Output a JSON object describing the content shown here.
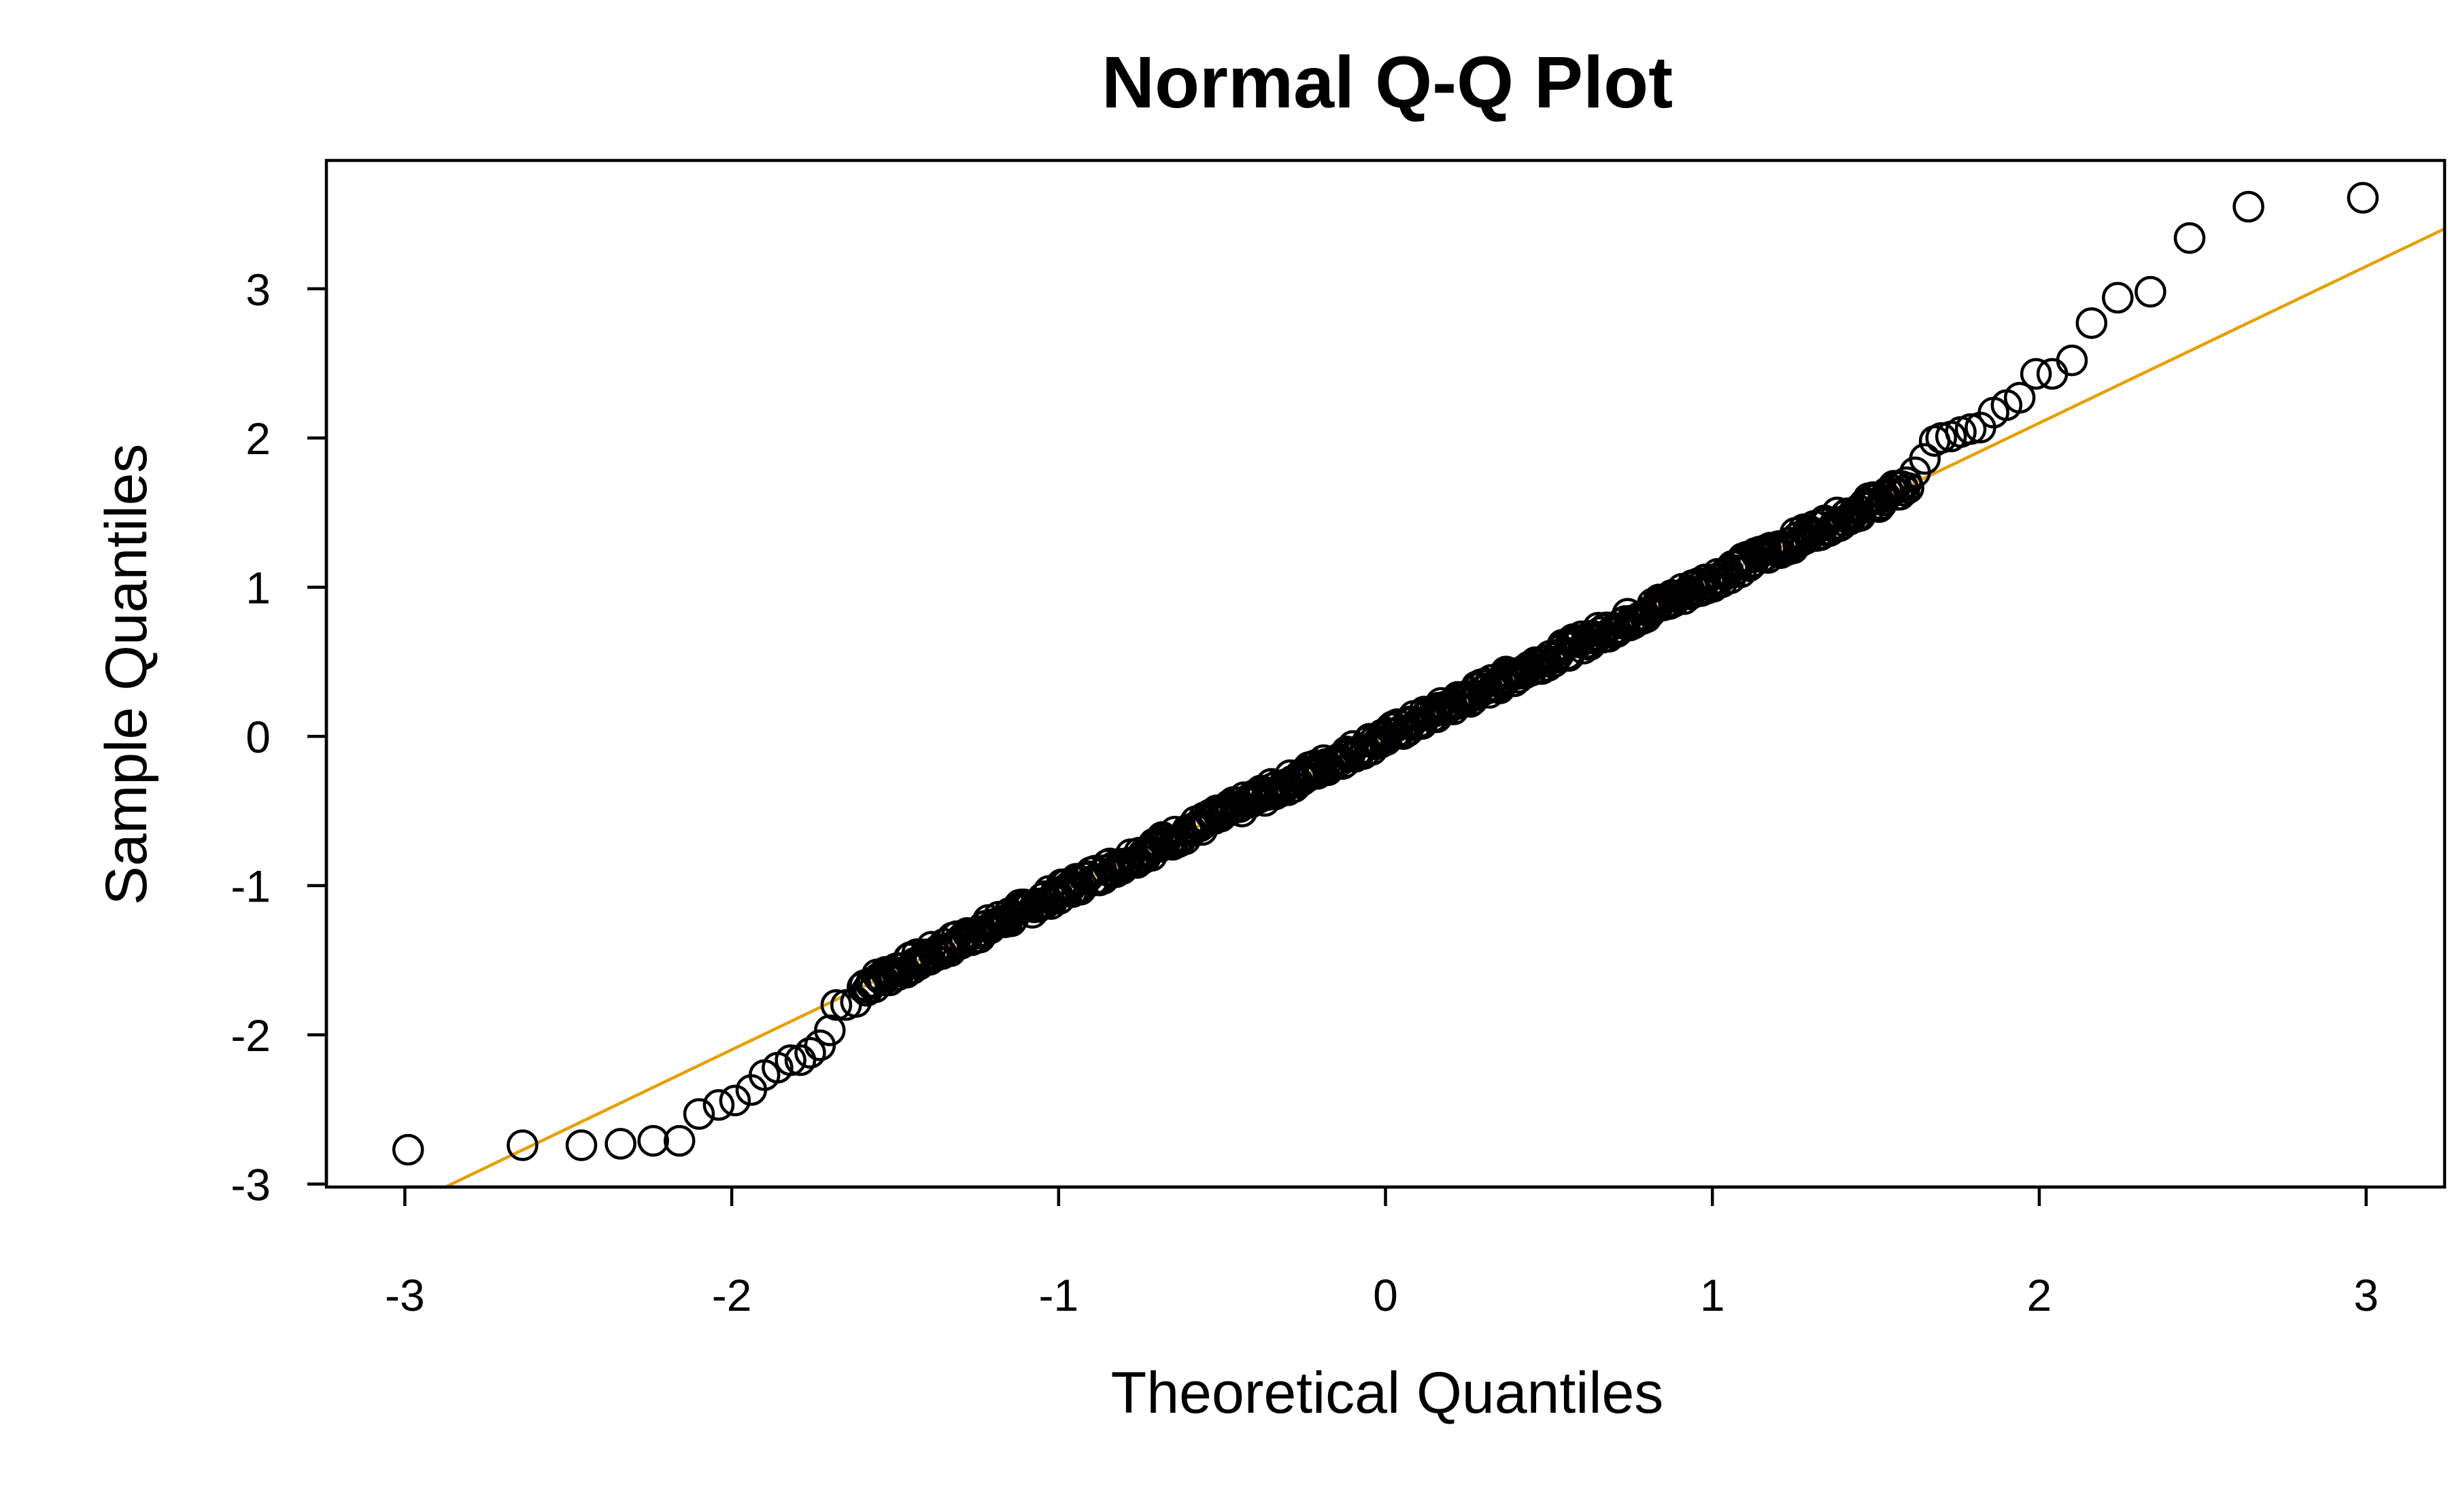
{
  "chart_data": {
    "type": "scatter",
    "title": "Normal Q-Q Plot",
    "xlabel": "Theoretical Quantiles",
    "ylabel": "Sample Quantiles",
    "xlim": [
      -3.24,
      3.24
    ],
    "ylim": [
      -3.02,
      3.86
    ],
    "x_ticks": [
      "-3",
      "-2",
      "-1",
      "0",
      "1",
      "2",
      "3"
    ],
    "y_ticks": [
      "-3",
      "-2",
      "-1",
      "0",
      "1",
      "2",
      "3"
    ],
    "x_tick_values": [
      -3,
      -2,
      -1,
      0,
      1,
      2,
      3
    ],
    "y_tick_values": [
      -3,
      -2,
      -1,
      0,
      1,
      2,
      3
    ],
    "grid": false,
    "line_color": "#E69F00",
    "point_color": "#000000",
    "reference_line": {
      "slope": 1.05,
      "intercept": 0.0
    },
    "points_body": {
      "x_from": -1.6,
      "x_to": 1.6,
      "count": 500,
      "slope": 1.05,
      "intercept": 0.0
    },
    "points_tails": [
      {
        "x": -2.99,
        "y": -2.77
      },
      {
        "x": -2.64,
        "y": -2.74
      },
      {
        "x": -2.46,
        "y": -2.74
      },
      {
        "x": -2.34,
        "y": -2.73
      },
      {
        "x": -2.24,
        "y": -2.71
      },
      {
        "x": -2.16,
        "y": -2.71
      },
      {
        "x": -2.1,
        "y": -2.53
      },
      {
        "x": -2.04,
        "y": -2.47
      },
      {
        "x": -1.99,
        "y": -2.44
      },
      {
        "x": -1.94,
        "y": -2.37
      },
      {
        "x": -1.9,
        "y": -2.27
      },
      {
        "x": -1.86,
        "y": -2.22
      },
      {
        "x": -1.82,
        "y": -2.17
      },
      {
        "x": -1.79,
        "y": -2.17
      },
      {
        "x": -1.76,
        "y": -2.12
      },
      {
        "x": -1.73,
        "y": -2.07
      },
      {
        "x": -1.7,
        "y": -1.97
      },
      {
        "x": -1.68,
        "y": -1.8
      },
      {
        "x": -1.65,
        "y": -1.8
      },
      {
        "x": -1.62,
        "y": -1.78
      },
      {
        "x": 1.62,
        "y": 1.77
      },
      {
        "x": 1.65,
        "y": 1.86
      },
      {
        "x": 1.68,
        "y": 1.98
      },
      {
        "x": 1.7,
        "y": 2.0
      },
      {
        "x": 1.73,
        "y": 2.01
      },
      {
        "x": 1.76,
        "y": 2.04
      },
      {
        "x": 1.79,
        "y": 2.06
      },
      {
        "x": 1.82,
        "y": 2.07
      },
      {
        "x": 1.86,
        "y": 2.17
      },
      {
        "x": 1.9,
        "y": 2.22
      },
      {
        "x": 1.94,
        "y": 2.27
      },
      {
        "x": 1.99,
        "y": 2.43
      },
      {
        "x": 2.04,
        "y": 2.43
      },
      {
        "x": 2.1,
        "y": 2.52
      },
      {
        "x": 2.16,
        "y": 2.77
      },
      {
        "x": 2.24,
        "y": 2.94
      },
      {
        "x": 2.34,
        "y": 2.98
      },
      {
        "x": 2.46,
        "y": 3.34
      },
      {
        "x": 2.64,
        "y": 3.55
      },
      {
        "x": 2.99,
        "y": 3.61
      }
    ]
  }
}
